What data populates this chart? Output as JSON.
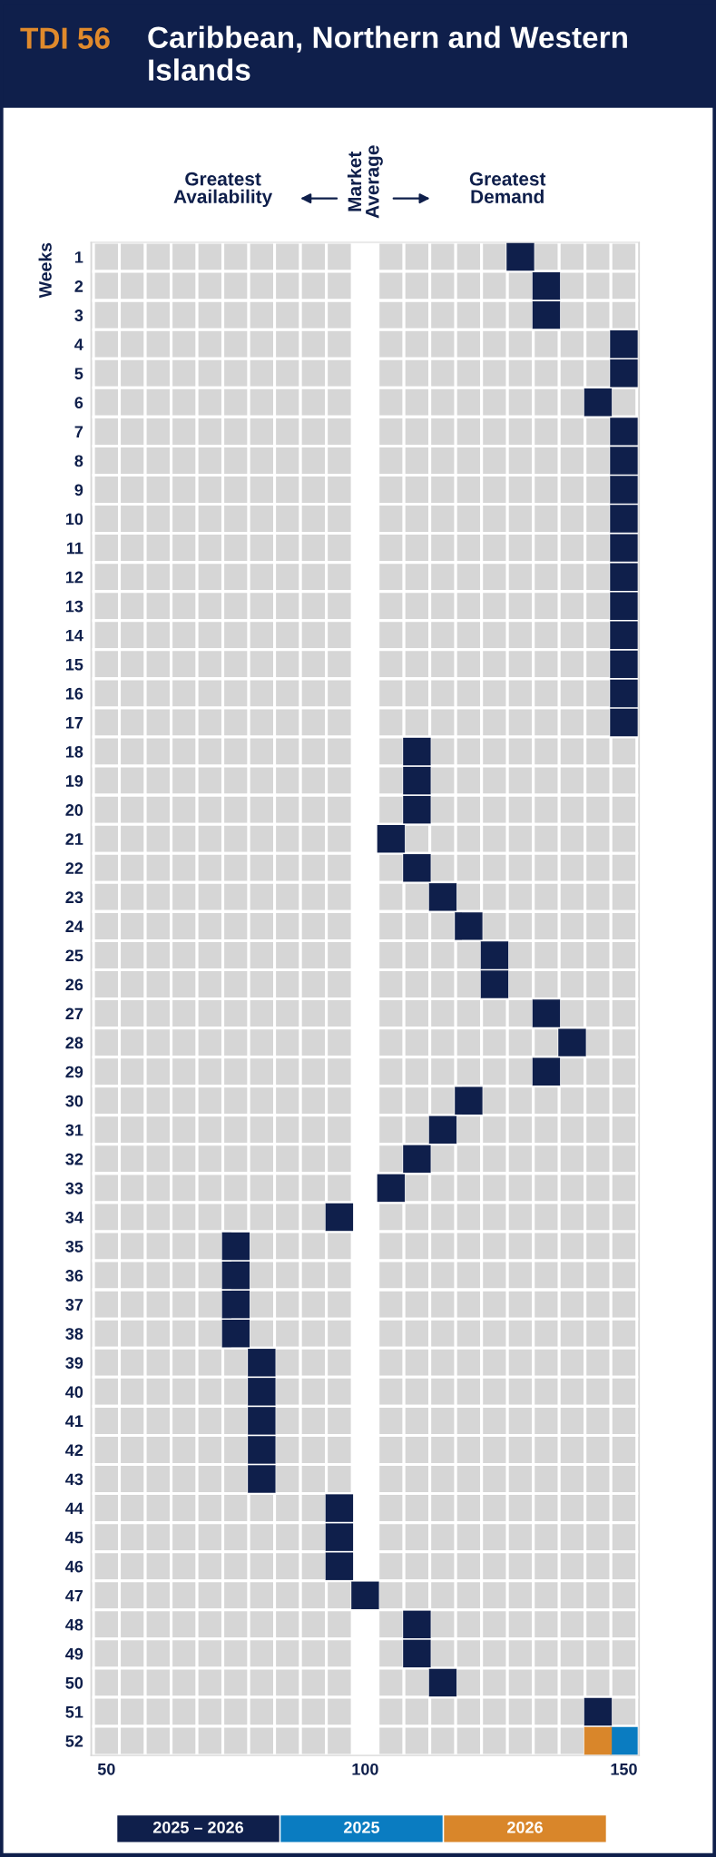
{
  "chart_data": {
    "type": "scatter",
    "orientation": "horizontal",
    "title": "TDI 56",
    "subtitle": "Caribbean, Northern and Western Islands",
    "ylabel": "Weeks",
    "annotations": [
      "Greatest\nAvailability",
      "Market\nAverage",
      "Greatest\nDemand"
    ],
    "categories": [
      "1",
      "2",
      "3",
      "4",
      "5",
      "6",
      "7",
      "8",
      "9",
      "10",
      "11",
      "12",
      "13",
      "14",
      "15",
      "16",
      "17",
      "18",
      "19",
      "20",
      "21",
      "22",
      "23",
      "24",
      "25",
      "26",
      "27",
      "28",
      "29",
      "30",
      "31",
      "32",
      "33",
      "34",
      "35",
      "36",
      "37",
      "38",
      "39",
      "40",
      "41",
      "42",
      "43",
      "44",
      "45",
      "46",
      "47",
      "48",
      "49",
      "50",
      "51",
      "52"
    ],
    "series": [
      {
        "name": "2025 – 2026",
        "color": "#0f1f4b",
        "values": [
          130,
          135,
          135,
          150,
          150,
          145,
          150,
          150,
          150,
          150,
          150,
          150,
          150,
          150,
          150,
          150,
          150,
          110,
          110,
          110,
          105,
          110,
          115,
          120,
          125,
          125,
          135,
          140,
          135,
          120,
          115,
          110,
          105,
          95,
          75,
          75,
          75,
          75,
          80,
          80,
          80,
          80,
          80,
          95,
          95,
          95,
          100,
          110,
          110,
          115,
          145,
          null
        ]
      },
      {
        "name": "2025",
        "color": "#0a7cc1",
        "values": [
          null,
          null,
          null,
          null,
          null,
          null,
          null,
          null,
          null,
          null,
          null,
          null,
          null,
          null,
          null,
          null,
          null,
          null,
          null,
          null,
          null,
          null,
          null,
          null,
          null,
          null,
          null,
          null,
          null,
          null,
          null,
          null,
          null,
          null,
          null,
          null,
          null,
          null,
          null,
          null,
          null,
          null,
          null,
          null,
          null,
          null,
          null,
          null,
          null,
          null,
          null,
          150
        ]
      },
      {
        "name": "2026",
        "color": "#d9862a",
        "values": [
          null,
          null,
          null,
          null,
          null,
          null,
          null,
          null,
          null,
          null,
          null,
          null,
          null,
          null,
          null,
          null,
          null,
          null,
          null,
          null,
          null,
          null,
          null,
          null,
          null,
          null,
          null,
          null,
          null,
          null,
          null,
          null,
          null,
          null,
          null,
          null,
          null,
          null,
          null,
          null,
          null,
          null,
          null,
          null,
          null,
          null,
          null,
          null,
          null,
          null,
          null,
          145
        ]
      }
    ],
    "xlim": [
      47,
      153
    ],
    "xticks": [
      50,
      100,
      150
    ],
    "marker": "square",
    "legend": "bottom"
  }
}
